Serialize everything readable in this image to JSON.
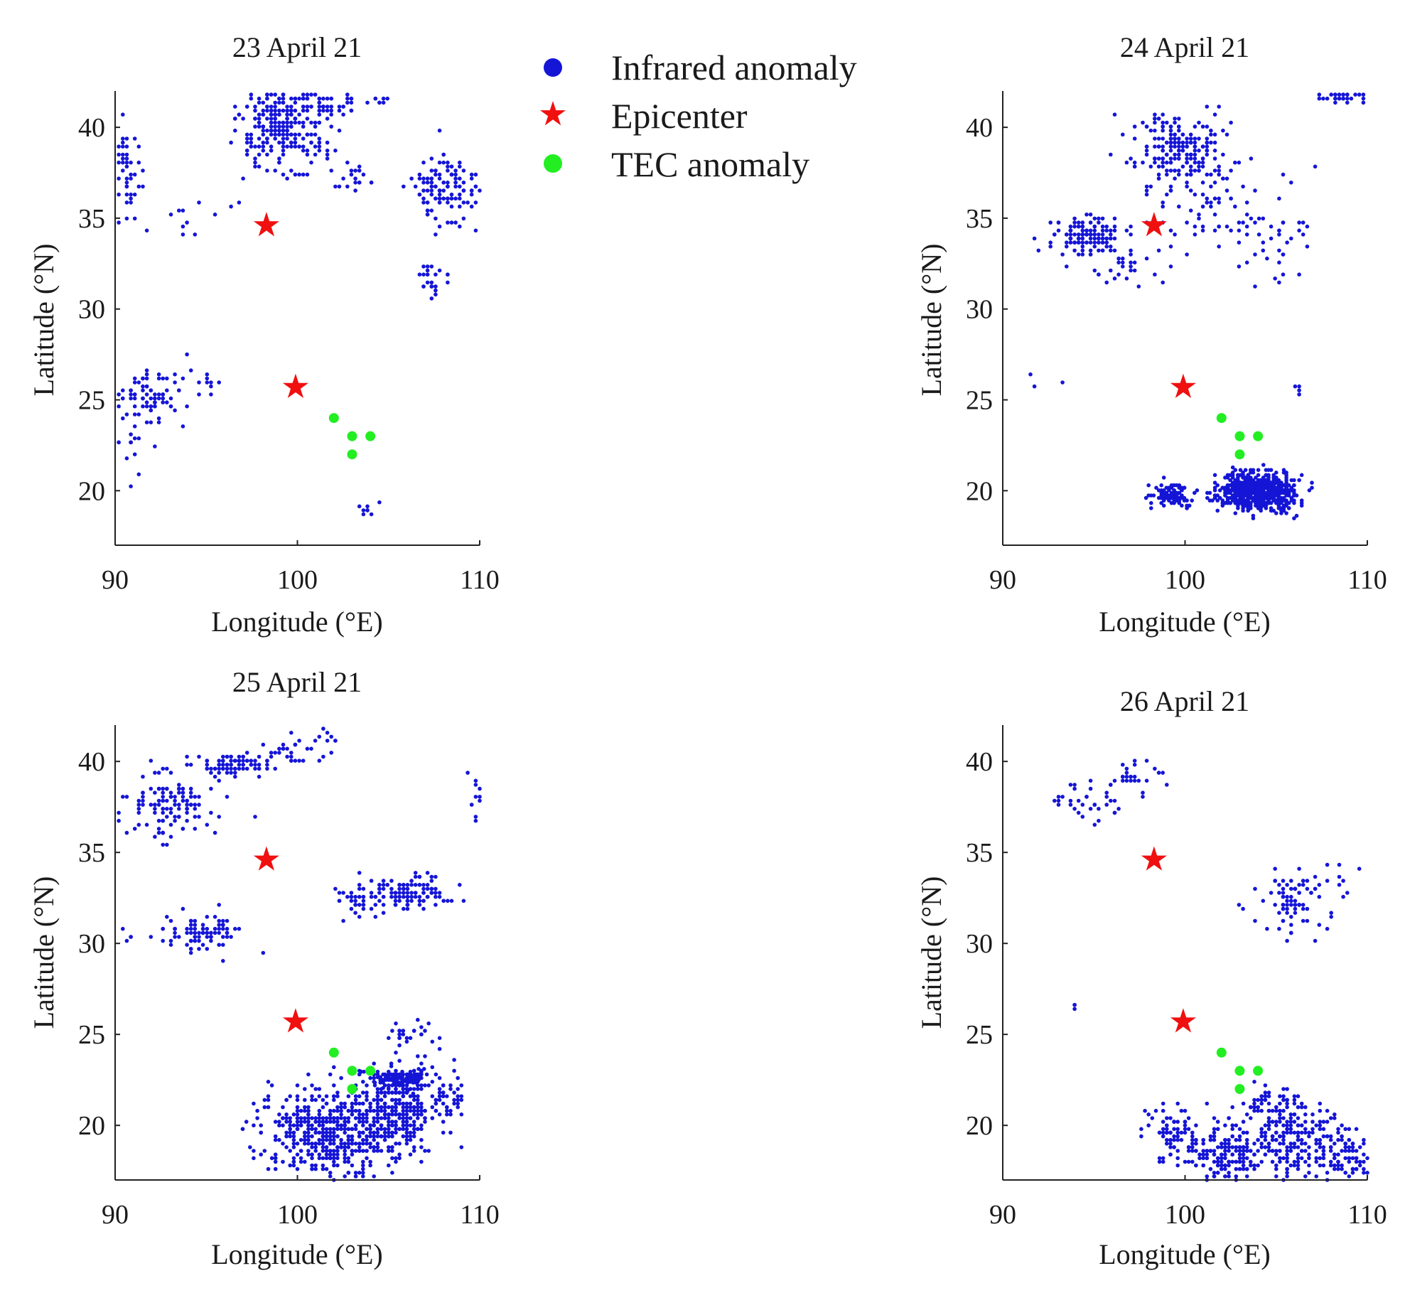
{
  "legend": {
    "infrared": "Infrared anomaly",
    "epicenter": "Epicenter",
    "tec": "TEC anomaly"
  },
  "colors": {
    "infrared": "#1515d6",
    "epicenter": "#f01010",
    "tec": "#22ee22",
    "axis": "#222222"
  },
  "chart_data": [
    {
      "type": "scatter",
      "title": "23 April 21",
      "xlabel": "Longitude (°E)",
      "ylabel": "Latitude (°N)",
      "xlim": [
        90,
        110
      ],
      "ylim": [
        17,
        42
      ],
      "xticks": [
        90,
        100,
        110
      ],
      "yticks": [
        20,
        25,
        30,
        35,
        40
      ],
      "epicenters": [
        [
          98.3,
          34.6
        ],
        [
          99.9,
          25.7
        ]
      ],
      "tec": [
        [
          102,
          24
        ],
        [
          103,
          23
        ],
        [
          104,
          23
        ],
        [
          103,
          22
        ]
      ],
      "infrared_clusters": [
        {
          "center": [
            99.2,
            40
          ],
          "spread": [
            1.6,
            1.8
          ],
          "count": 280,
          "grid": 0.22
        },
        {
          "center": [
            101.8,
            41.2
          ],
          "spread": [
            0.8,
            0.5
          ],
          "count": 40,
          "grid": 0.22
        },
        {
          "center": [
            102.9,
            37.3
          ],
          "spread": [
            0.9,
            0.5
          ],
          "count": 20,
          "grid": 0.22
        },
        {
          "center": [
            108.2,
            36.6
          ],
          "spread": [
            1.2,
            1.3
          ],
          "count": 120,
          "grid": 0.22
        },
        {
          "center": [
            107.4,
            31.6
          ],
          "spread": [
            0.6,
            0.7
          ],
          "count": 25,
          "grid": 0.22
        },
        {
          "center": [
            90.6,
            37.5
          ],
          "spread": [
            0.6,
            2.2
          ],
          "count": 45,
          "grid": 0.22
        },
        {
          "center": [
            91.8,
            25.3
          ],
          "spread": [
            1.3,
            1.0
          ],
          "count": 80,
          "grid": 0.22
        },
        {
          "center": [
            90.8,
            22.5
          ],
          "spread": [
            0.6,
            1.2
          ],
          "count": 20,
          "grid": 0.22
        },
        {
          "center": [
            104.6,
            41.5
          ],
          "spread": [
            0.6,
            0.1
          ],
          "count": 8,
          "grid": 0.22
        },
        {
          "center": [
            103.7,
            19.1
          ],
          "spread": [
            0.3,
            0.4
          ],
          "count": 8,
          "grid": 0.22
        },
        {
          "center": [
            94,
            35
          ],
          "spread": [
            1.5,
            0.6
          ],
          "count": 10,
          "grid": 0.22
        },
        {
          "center": [
            94.5,
            26
          ],
          "spread": [
            1.0,
            0.5
          ],
          "count": 12,
          "grid": 0.22
        }
      ]
    },
    {
      "type": "scatter",
      "title": "24 April 21",
      "xlabel": "Longitude (°E)",
      "ylabel": "Latitude (°N)",
      "xlim": [
        90,
        110
      ],
      "ylim": [
        17,
        42
      ],
      "xticks": [
        90,
        100,
        110
      ],
      "yticks": [
        20,
        25,
        30,
        35,
        40
      ],
      "epicenters": [
        [
          98.3,
          34.6
        ],
        [
          99.9,
          25.7
        ]
      ],
      "tec": [
        [
          102,
          24
        ],
        [
          103,
          23
        ],
        [
          104,
          23
        ],
        [
          103,
          22
        ]
      ],
      "infrared_clusters": [
        {
          "center": [
            104,
            20
          ],
          "spread": [
            1.3,
            0.7
          ],
          "count": 650,
          "grid": 0.14
        },
        {
          "center": [
            99.3,
            19.8
          ],
          "spread": [
            0.8,
            0.5
          ],
          "count": 100,
          "grid": 0.14
        },
        {
          "center": [
            94.5,
            34
          ],
          "spread": [
            1.2,
            0.8
          ],
          "count": 130,
          "grid": 0.22
        },
        {
          "center": [
            99.8,
            38.8
          ],
          "spread": [
            1.8,
            1.5
          ],
          "count": 220,
          "grid": 0.22
        },
        {
          "center": [
            102.5,
            35
          ],
          "spread": [
            2.5,
            2.0
          ],
          "count": 80,
          "grid": 0.22
        },
        {
          "center": [
            96,
            32.5
          ],
          "spread": [
            1.5,
            0.8
          ],
          "count": 30,
          "grid": 0.22
        },
        {
          "center": [
            108.8,
            41.7
          ],
          "spread": [
            0.9,
            0.2
          ],
          "count": 35,
          "grid": 0.22
        },
        {
          "center": [
            105.5,
            33.5
          ],
          "spread": [
            0.8,
            1.0
          ],
          "count": 15,
          "grid": 0.22
        },
        {
          "center": [
            106.3,
            25.6
          ],
          "spread": [
            0.2,
            0.3
          ],
          "count": 4,
          "grid": 0.22
        },
        {
          "center": [
            91.5,
            26.2
          ],
          "spread": [
            1.2,
            0.8
          ],
          "count": 4,
          "grid": 0.22
        }
      ]
    },
    {
      "type": "scatter",
      "title": "25 April 21",
      "xlabel": "Longitude (°E)",
      "ylabel": "Latitude (°N)",
      "xlim": [
        90,
        110
      ],
      "ylim": [
        17,
        42
      ],
      "xticks": [
        90,
        100,
        110
      ],
      "yticks": [
        20,
        25,
        30,
        35,
        40
      ],
      "epicenters": [
        [
          98.3,
          34.6
        ],
        [
          99.9,
          25.7
        ]
      ],
      "tec": [
        [
          102,
          24
        ],
        [
          103,
          23
        ],
        [
          104,
          23
        ],
        [
          103,
          22
        ]
      ],
      "infrared_clusters": [
        {
          "center": [
            102,
            19.6
          ],
          "spread": [
            2.6,
            1.6
          ],
          "count": 520,
          "grid": 0.2
        },
        {
          "center": [
            105.5,
            21
          ],
          "spread": [
            1.4,
            1.5
          ],
          "count": 300,
          "grid": 0.2
        },
        {
          "center": [
            105.5,
            22.6
          ],
          "spread": [
            0.9,
            0.4
          ],
          "count": 100,
          "grid": 0.15
        },
        {
          "center": [
            108,
            21.5
          ],
          "spread": [
            1.0,
            1.0
          ],
          "count": 50,
          "grid": 0.2
        },
        {
          "center": [
            106,
            25
          ],
          "spread": [
            0.9,
            0.5
          ],
          "count": 25,
          "grid": 0.2
        },
        {
          "center": [
            93,
            37.5
          ],
          "spread": [
            1.6,
            1.2
          ],
          "count": 120,
          "grid": 0.22
        },
        {
          "center": [
            96.5,
            39.8
          ],
          "spread": [
            1.6,
            0.4
          ],
          "count": 80,
          "grid": 0.22
        },
        {
          "center": [
            99.5,
            40.5
          ],
          "spread": [
            0.9,
            0.5
          ],
          "count": 25,
          "grid": 0.22
        },
        {
          "center": [
            101.5,
            41.1
          ],
          "spread": [
            0.4,
            0.5
          ],
          "count": 10,
          "grid": 0.22
        },
        {
          "center": [
            94.8,
            30.5
          ],
          "spread": [
            1.3,
            0.7
          ],
          "count": 90,
          "grid": 0.22
        },
        {
          "center": [
            106.5,
            32.8
          ],
          "spread": [
            1.4,
            0.6
          ],
          "count": 110,
          "grid": 0.22
        },
        {
          "center": [
            103.5,
            32.5
          ],
          "spread": [
            1.0,
            0.8
          ],
          "count": 40,
          "grid": 0.22
        },
        {
          "center": [
            109.8,
            38.5
          ],
          "spread": [
            0.3,
            1.3
          ],
          "count": 10,
          "grid": 0.22
        },
        {
          "center": [
            91,
            30.3
          ],
          "spread": [
            0.5,
            0.4
          ],
          "count": 5,
          "grid": 0.22
        }
      ]
    },
    {
      "type": "scatter",
      "title": "26 April 21",
      "xlabel": "Longitude (°E)",
      "ylabel": "Latitude (°N)",
      "xlim": [
        90,
        110
      ],
      "ylim": [
        17,
        42
      ],
      "xticks": [
        90,
        100,
        110
      ],
      "yticks": [
        20,
        25,
        30,
        35,
        40
      ],
      "epicenters": [
        [
          98.3,
          34.6
        ],
        [
          99.9,
          25.7
        ]
      ],
      "tec": [
        [
          102,
          24
        ],
        [
          103,
          23
        ],
        [
          104,
          23
        ],
        [
          103,
          22
        ]
      ],
      "infrared_clusters": [
        {
          "center": [
            102.3,
            18.6
          ],
          "spread": [
            1.6,
            1.2
          ],
          "count": 200,
          "grid": 0.2
        },
        {
          "center": [
            99.2,
            19.5
          ],
          "spread": [
            1.0,
            1.1
          ],
          "count": 70,
          "grid": 0.2
        },
        {
          "center": [
            106,
            19.5
          ],
          "spread": [
            1.3,
            1.5
          ],
          "count": 170,
          "grid": 0.2
        },
        {
          "center": [
            108.7,
            18.5
          ],
          "spread": [
            1.1,
            1.2
          ],
          "count": 100,
          "grid": 0.2
        },
        {
          "center": [
            104.5,
            21
          ],
          "spread": [
            0.8,
            1.0
          ],
          "count": 40,
          "grid": 0.2
        },
        {
          "center": [
            105.8,
            32.4
          ],
          "spread": [
            1.2,
            1.2
          ],
          "count": 80,
          "grid": 0.22
        },
        {
          "center": [
            94.8,
            37.8
          ],
          "spread": [
            1.6,
            0.7
          ],
          "count": 35,
          "grid": 0.22
        },
        {
          "center": [
            97.5,
            39.2
          ],
          "spread": [
            1.1,
            0.5
          ],
          "count": 25,
          "grid": 0.22
        },
        {
          "center": [
            93.9,
            26.6
          ],
          "spread": [
            0.1,
            0.2
          ],
          "count": 3,
          "grid": 0.22
        },
        {
          "center": [
            108.5,
            33
          ],
          "spread": [
            1.0,
            1.2
          ],
          "count": 10,
          "grid": 0.22
        }
      ]
    }
  ]
}
